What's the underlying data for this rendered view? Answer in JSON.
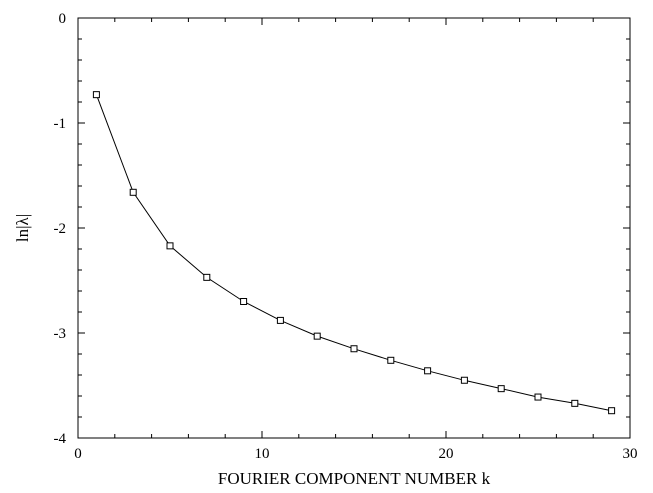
{
  "chart_data": {
    "type": "line",
    "title": "",
    "xlabel": "FOURIER COMPONENT NUMBER k",
    "ylabel": "ln|λ|",
    "xlim": [
      0,
      30
    ],
    "ylim": [
      -4,
      0
    ],
    "xticks": [
      "0",
      "10",
      "20",
      "30"
    ],
    "yticks": [
      "0",
      "-1",
      "-2",
      "-3",
      "-4"
    ],
    "grid": false,
    "legend": "none",
    "marker": "square",
    "line_color": "#000000",
    "series": [
      {
        "x": [
          1,
          3,
          5,
          7,
          9,
          11,
          13,
          15,
          17,
          19,
          21,
          23,
          25,
          27,
          29
        ],
        "y": [
          -0.73,
          -1.66,
          -2.17,
          -2.47,
          -2.7,
          -2.88,
          -3.03,
          -3.15,
          -3.26,
          -3.36,
          -3.45,
          -3.53,
          -3.61,
          -3.67,
          -3.74
        ]
      }
    ]
  }
}
